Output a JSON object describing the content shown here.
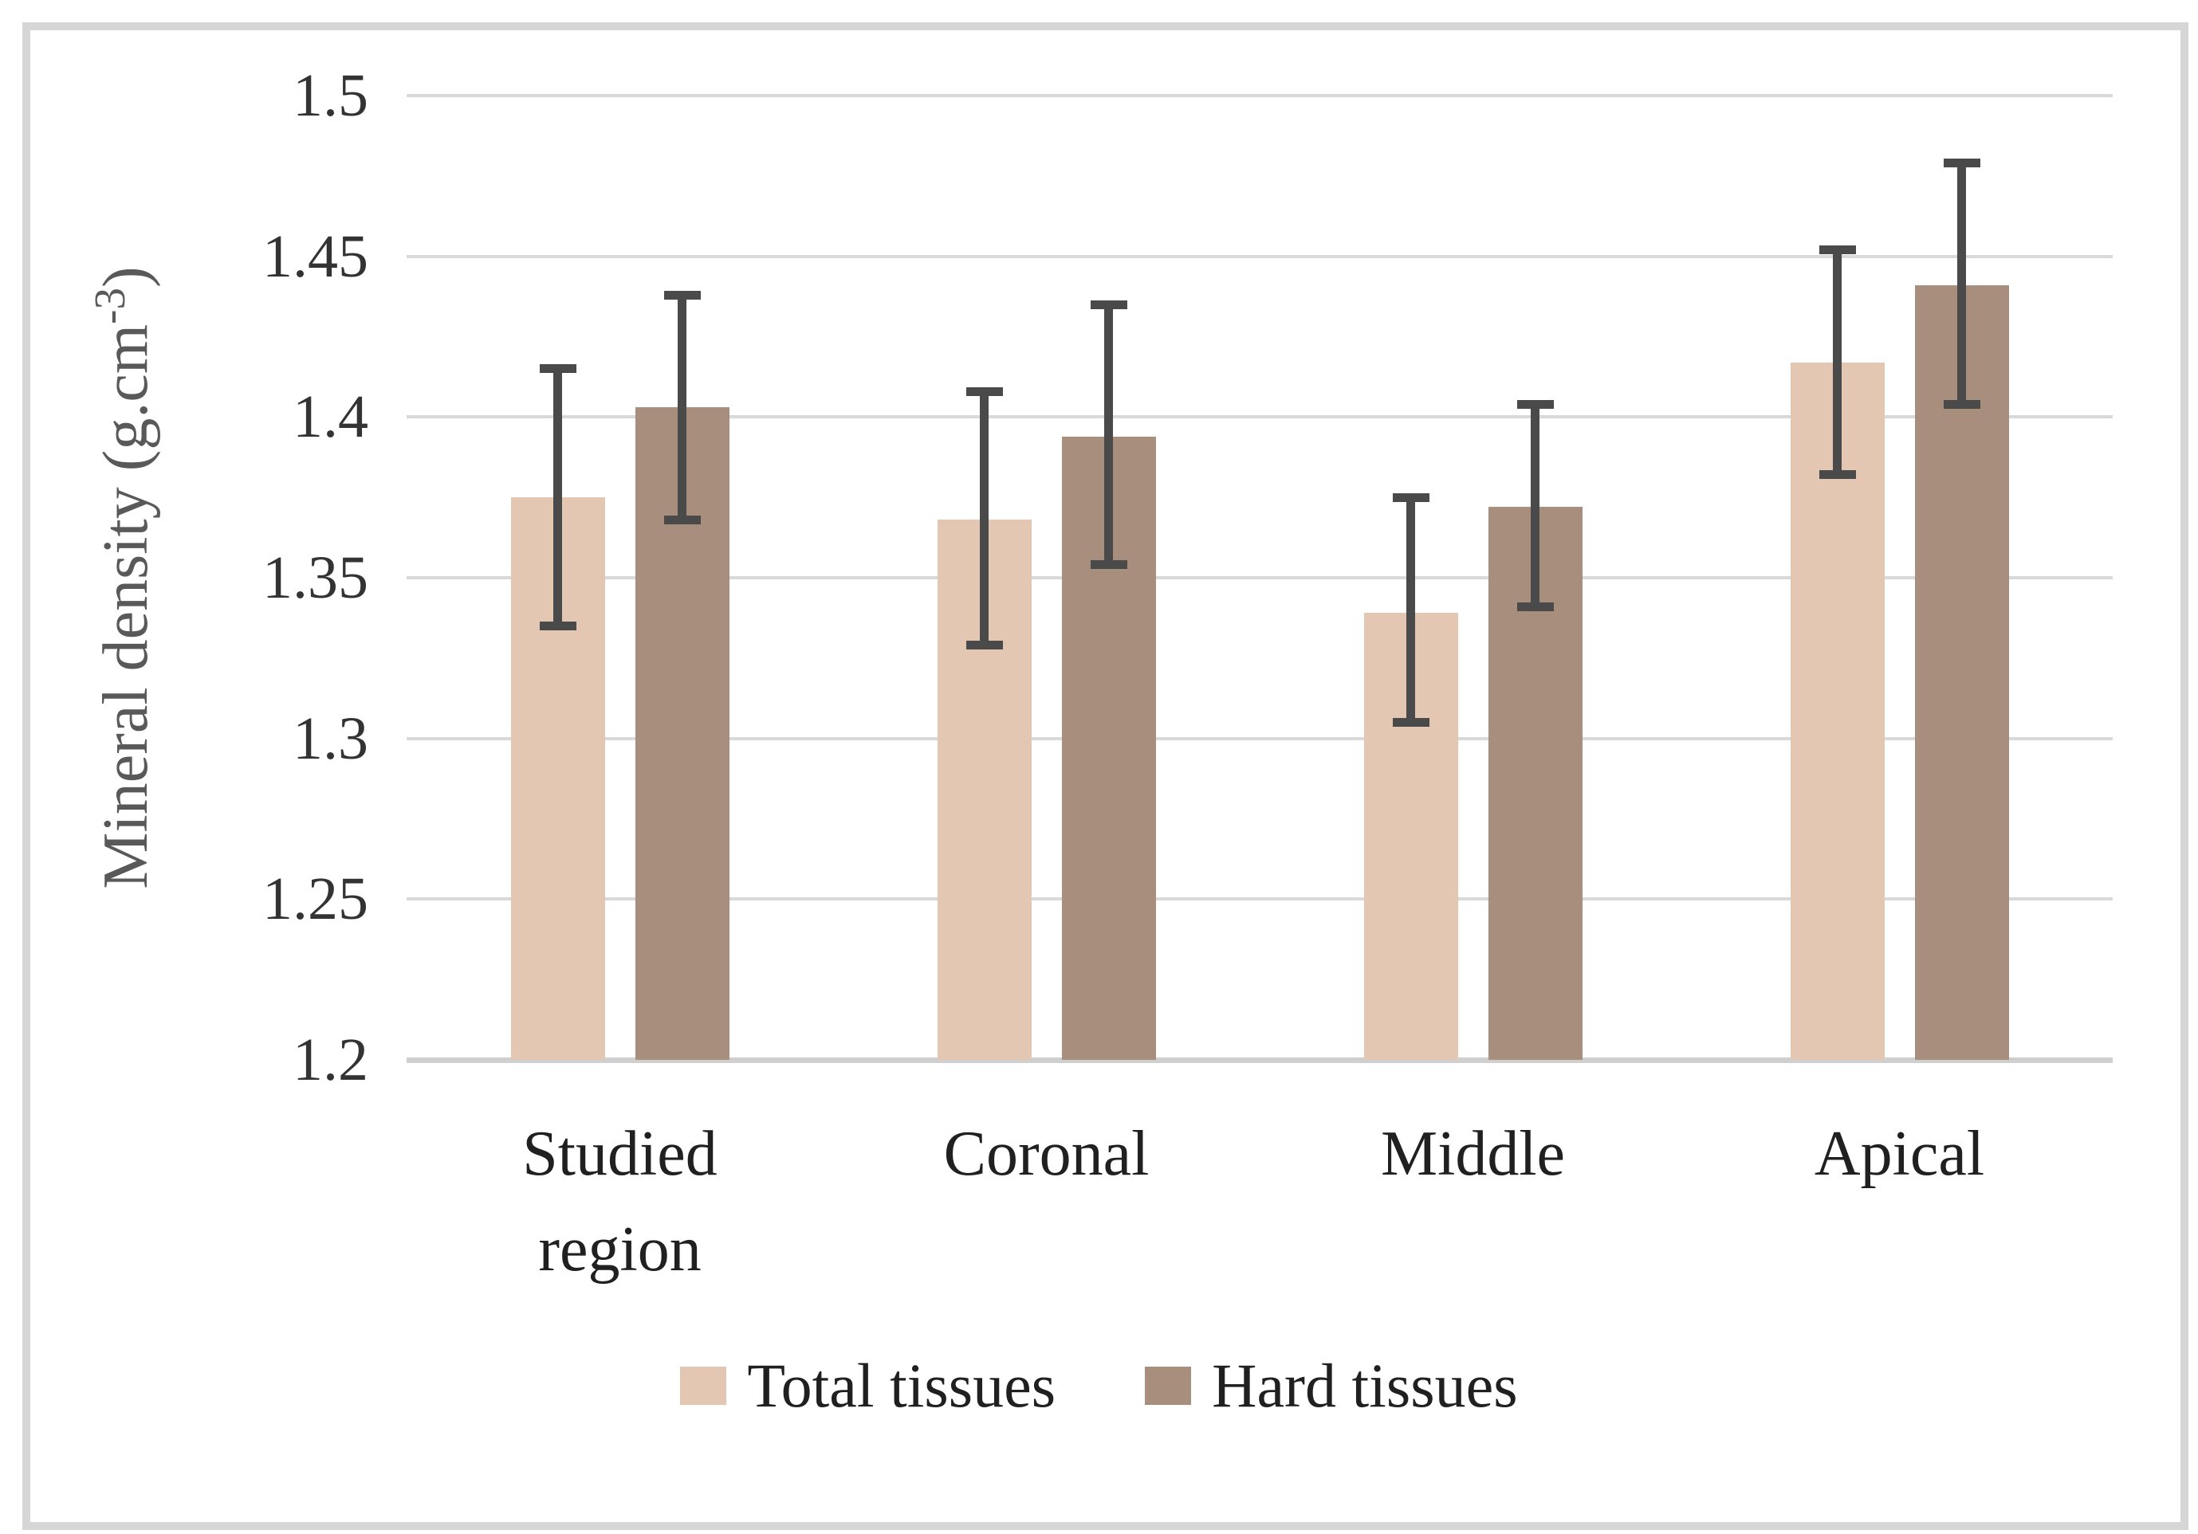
{
  "frame": {
    "border_color": "#d6d6d6",
    "background": "#ffffff"
  },
  "chart_data": {
    "type": "bar",
    "title": "",
    "xlabel": "",
    "ylabel": {
      "text": "Mineral density (g.cm-3)",
      "prefix": "Mineral density (g.cm",
      "superscript": "-3",
      "suffix": ")"
    },
    "ylim": [
      1.2,
      1.5
    ],
    "y_tick_step": 0.05,
    "y_ticks": [
      {
        "value": 1.5,
        "label": "1.5"
      },
      {
        "value": 1.45,
        "label": "1.45"
      },
      {
        "value": 1.4,
        "label": "1.4"
      },
      {
        "value": 1.35,
        "label": "1.35"
      },
      {
        "value": 1.3,
        "label": "1.3"
      },
      {
        "value": 1.25,
        "label": "1.25"
      },
      {
        "value": 1.2,
        "label": "1.2"
      }
    ],
    "grid": "horizontal",
    "legend_position": "bottom-center",
    "categories": [
      "Studied region",
      "Coronal",
      "Middle",
      "Apical"
    ],
    "series": [
      {
        "name": "Total tissues",
        "color": "#e4c7b2",
        "values": [
          1.375,
          1.368,
          1.339,
          1.417
        ],
        "error_low": [
          1.335,
          1.329,
          1.305,
          1.382
        ],
        "error_high": [
          1.415,
          1.408,
          1.375,
          1.452
        ]
      },
      {
        "name": "Hard tissues",
        "color": "#a88f7d",
        "values": [
          1.403,
          1.394,
          1.372,
          1.441
        ],
        "error_low": [
          1.368,
          1.354,
          1.341,
          1.404
        ],
        "error_high": [
          1.438,
          1.435,
          1.404,
          1.479
        ]
      }
    ],
    "colors": {
      "gridline": "#d9d9d9",
      "axis_line": "#cfcfcf",
      "error_bar": "#4a4a4a",
      "tick_label": "#333333",
      "category_label": "#202020",
      "axis_title": "#595959",
      "legend_text": "#202020"
    }
  }
}
